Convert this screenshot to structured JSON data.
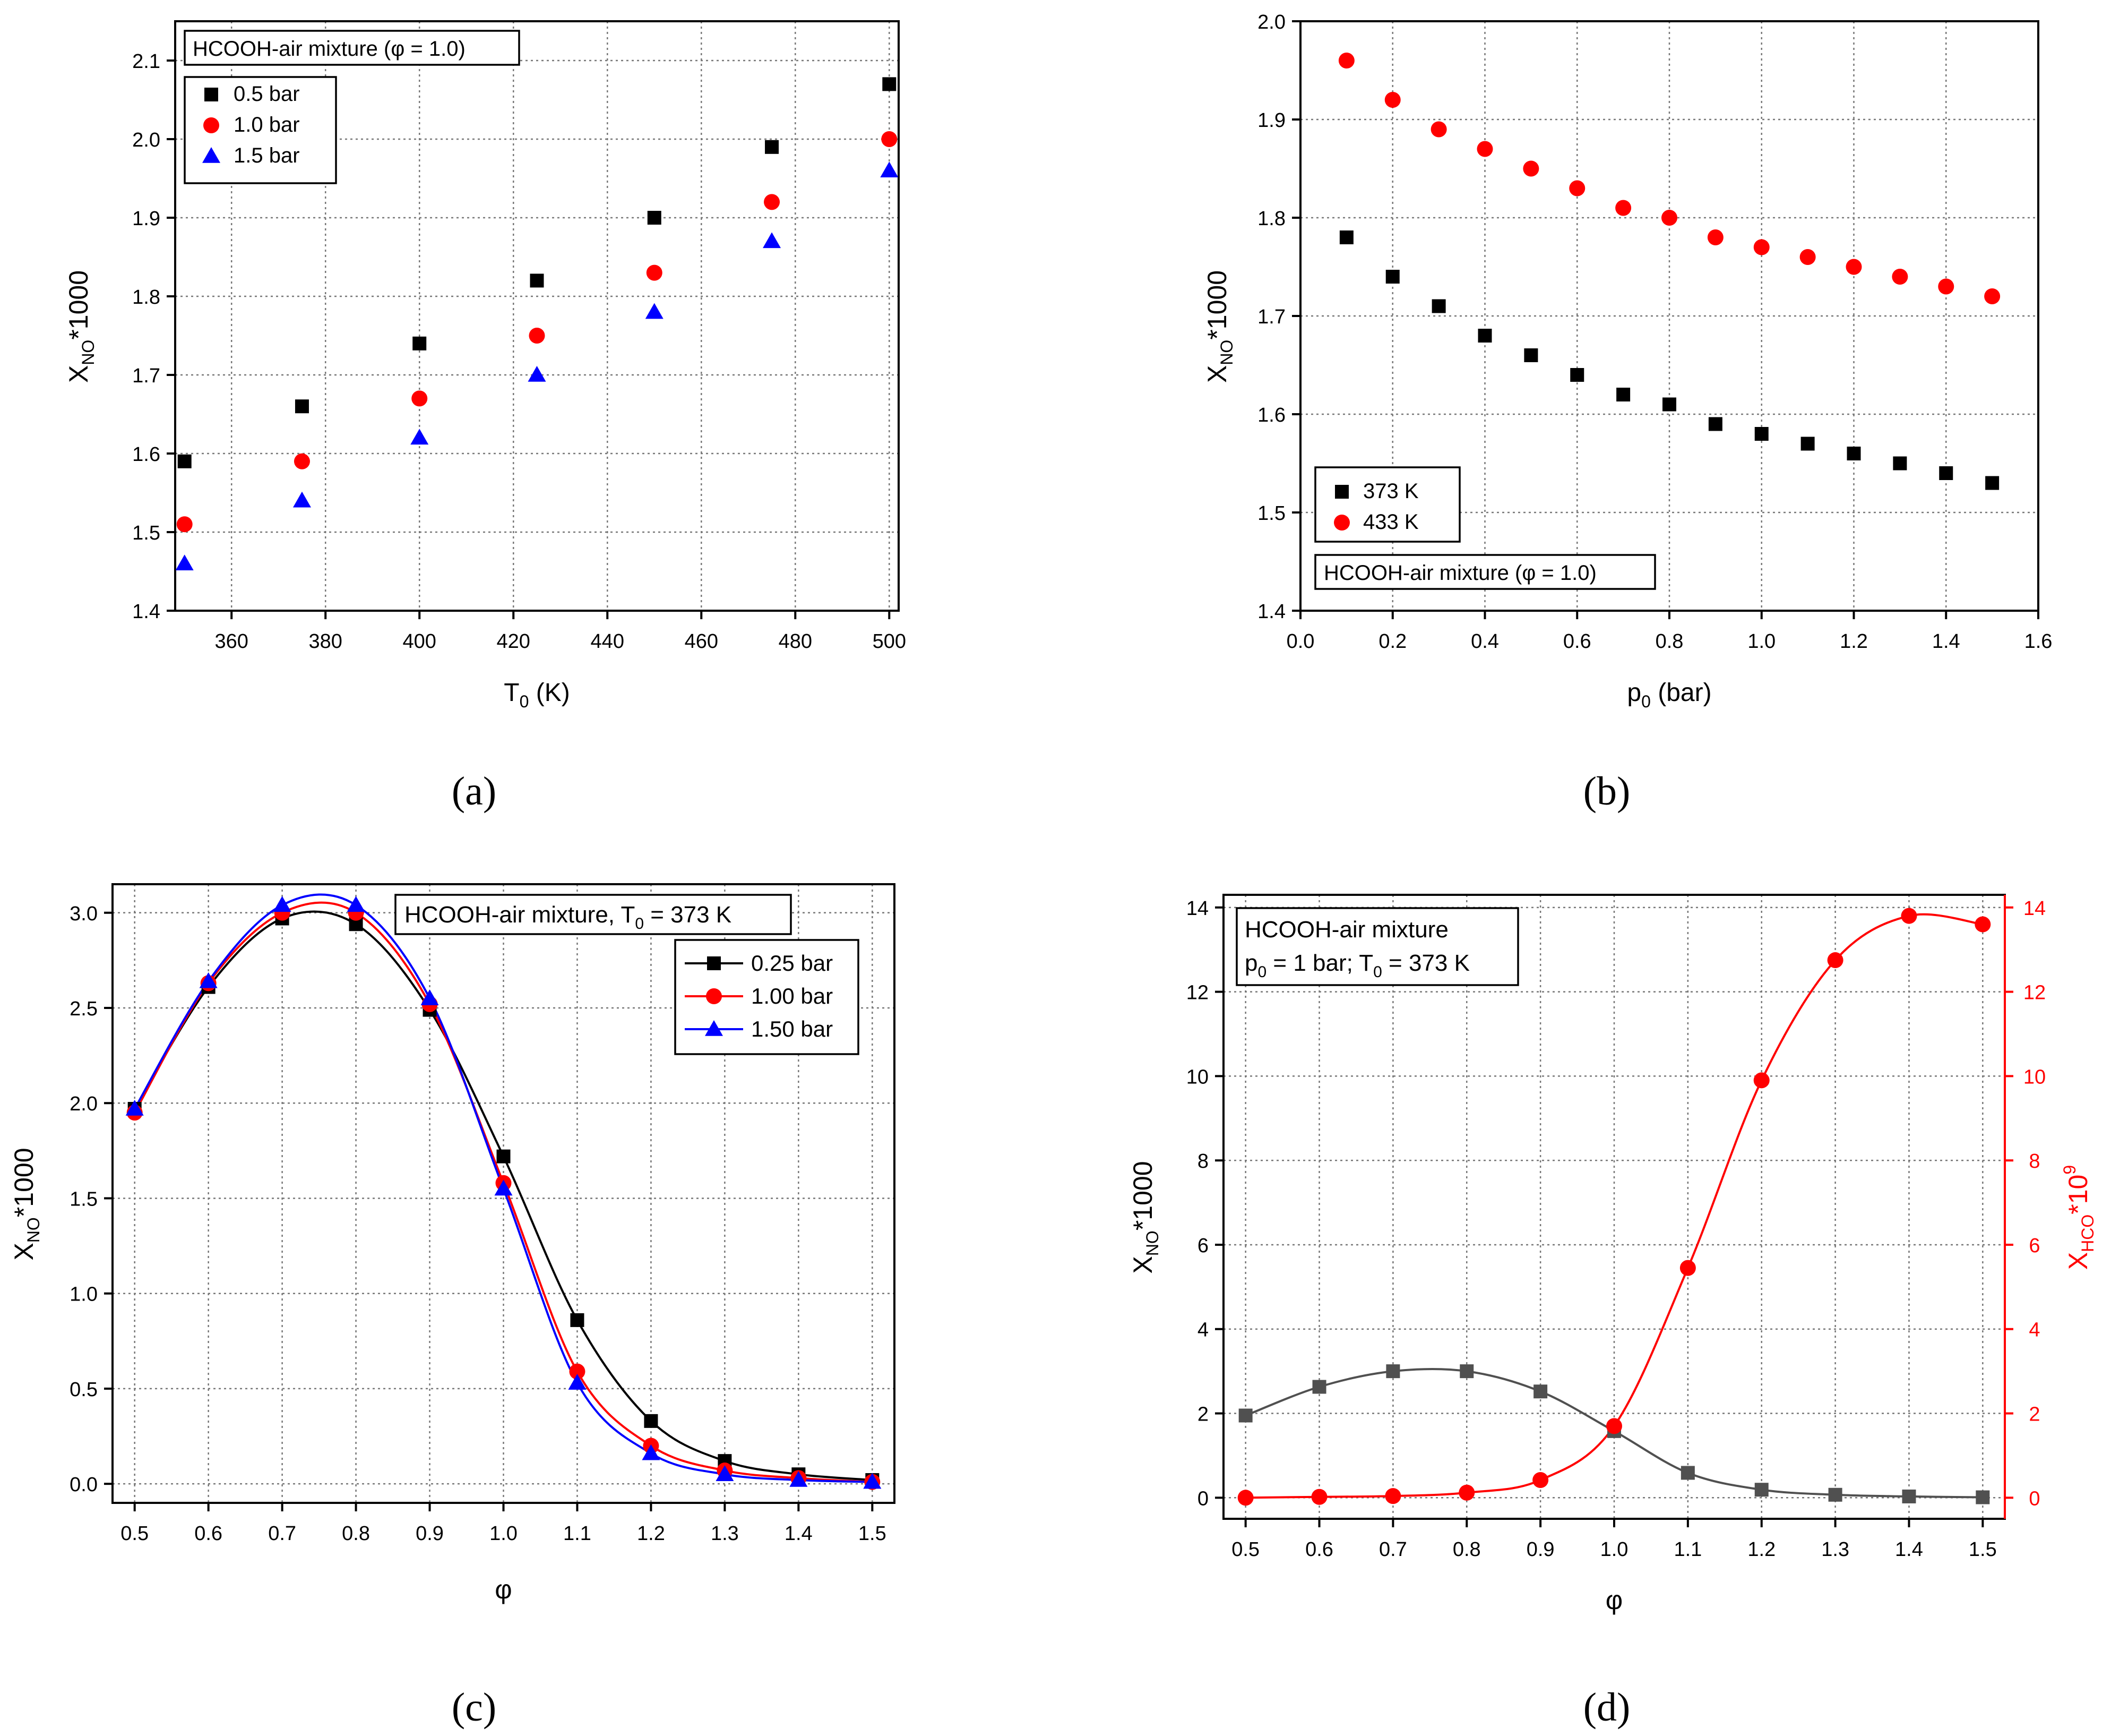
{
  "figure": {
    "panel_labels": [
      "(a)",
      "(b)",
      "(c)",
      "(d)"
    ]
  },
  "colors": {
    "black": "#000000",
    "red": "#ff0000",
    "blue": "#0000ff",
    "gray": "#505050",
    "grid": "#888888"
  },
  "chart_data": [
    {
      "id": "a",
      "type": "scatter",
      "annotation": "HCOOH-air mixture (φ = 1.0)",
      "xlabel_main": "T",
      "xlabel_sub": "0",
      "xlabel_tail": " (K)",
      "ylabel_main": "X",
      "ylabel_sub": "NO",
      "ylabel_tail": "*1000",
      "xlim": [
        348,
        502
      ],
      "ylim": [
        1.4,
        2.15
      ],
      "xticks": [
        360,
        380,
        400,
        420,
        440,
        460,
        480,
        500
      ],
      "yticks": [
        1.4,
        1.5,
        1.6,
        1.7,
        1.8,
        1.9,
        2.0,
        2.1
      ],
      "x": [
        350,
        375,
        400,
        425,
        450,
        475,
        500
      ],
      "series": [
        {
          "name": "0.5 bar",
          "marker": "square",
          "color": "#000000",
          "values": [
            1.59,
            1.66,
            1.74,
            1.82,
            1.9,
            1.99,
            2.07
          ]
        },
        {
          "name": "1.0 bar",
          "marker": "circle",
          "color": "#ff0000",
          "values": [
            1.51,
            1.59,
            1.67,
            1.75,
            1.83,
            1.92,
            2.0
          ]
        },
        {
          "name": "1.5 bar",
          "marker": "triangle",
          "color": "#0000ff",
          "values": [
            1.46,
            1.54,
            1.62,
            1.7,
            1.78,
            1.87,
            1.96
          ]
        }
      ]
    },
    {
      "id": "b",
      "type": "scatter",
      "annotation": "HCOOH-air mixture (φ = 1.0)",
      "xlabel_main": "p",
      "xlabel_sub": "0",
      "xlabel_tail": " (bar)",
      "ylabel_main": "X",
      "ylabel_sub": "NO",
      "ylabel_tail": "*1000",
      "xlim": [
        0.0,
        1.6
      ],
      "ylim": [
        1.4,
        2.0
      ],
      "xticks": [
        0.0,
        0.2,
        0.4,
        0.6,
        0.8,
        1.0,
        1.2,
        1.4,
        1.6
      ],
      "yticks": [
        1.4,
        1.5,
        1.6,
        1.7,
        1.8,
        1.9,
        2.0
      ],
      "x": [
        0.1,
        0.2,
        0.3,
        0.4,
        0.5,
        0.6,
        0.7,
        0.8,
        0.9,
        1.0,
        1.1,
        1.2,
        1.3,
        1.4,
        1.5
      ],
      "series": [
        {
          "name": "373 K",
          "marker": "square",
          "color": "#000000",
          "values": [
            1.78,
            1.74,
            1.71,
            1.68,
            1.66,
            1.64,
            1.62,
            1.61,
            1.59,
            1.58,
            1.57,
            1.56,
            1.55,
            1.54,
            1.53
          ]
        },
        {
          "name": "433 K",
          "marker": "circle",
          "color": "#ff0000",
          "values": [
            1.96,
            1.92,
            1.89,
            1.87,
            1.85,
            1.83,
            1.81,
            1.8,
            1.78,
            1.77,
            1.76,
            1.75,
            1.74,
            1.73,
            1.72
          ]
        }
      ]
    },
    {
      "id": "c",
      "type": "line",
      "annotation_main": "HCOOH-air mixture, T",
      "annotation_sub": "0",
      "annotation_tail": " = 373 K",
      "xlabel": "φ",
      "ylabel_main": "X",
      "ylabel_sub": "NO",
      "ylabel_tail": "*1000",
      "xlim": [
        0.47,
        1.53
      ],
      "ylim": [
        -0.1,
        3.15
      ],
      "xticks": [
        0.5,
        0.6,
        0.7,
        0.8,
        0.9,
        1.0,
        1.1,
        1.2,
        1.3,
        1.4,
        1.5
      ],
      "yticks": [
        0.0,
        0.5,
        1.0,
        1.5,
        2.0,
        2.5,
        3.0
      ],
      "x": [
        0.5,
        0.6,
        0.7,
        0.8,
        0.9,
        1.0,
        1.1,
        1.2,
        1.3,
        1.4,
        1.5
      ],
      "series": [
        {
          "name": "0.25 bar",
          "marker": "square",
          "color": "#000000",
          "values": [
            1.97,
            2.61,
            2.97,
            2.94,
            2.49,
            1.72,
            0.86,
            0.33,
            0.12,
            0.05,
            0.02
          ]
        },
        {
          "name": "1.00 bar",
          "marker": "circle",
          "color": "#ff0000",
          "values": [
            1.95,
            2.63,
            3.0,
            3.0,
            2.52,
            1.58,
            0.59,
            0.2,
            0.07,
            0.03,
            0.01
          ]
        },
        {
          "name": "1.50 bar",
          "marker": "triangle",
          "color": "#0000ff",
          "values": [
            1.97,
            2.64,
            3.04,
            3.04,
            2.55,
            1.55,
            0.53,
            0.16,
            0.05,
            0.02,
            0.01
          ]
        }
      ]
    },
    {
      "id": "d",
      "type": "line",
      "annotation_line1": "HCOOH-air mixture",
      "annotation_p": "p",
      "annotation_p_sub": "0",
      "annotation_mid": " = 1 bar; T",
      "annotation_t_sub": "0",
      "annotation_tail": " = 373 K",
      "xlabel": "φ",
      "ylabel_main": "X",
      "ylabel_sub": "NO",
      "ylabel_tail": "*1000",
      "y2label_main": "X",
      "y2label_sub": "HCO",
      "y2label_tail": "*10",
      "y2label_sup": "9",
      "xlim": [
        0.47,
        1.53
      ],
      "ylim": [
        -0.5,
        14.3
      ],
      "y2lim": [
        -0.5,
        14.3
      ],
      "xticks": [
        0.5,
        0.6,
        0.7,
        0.8,
        0.9,
        1.0,
        1.1,
        1.2,
        1.3,
        1.4,
        1.5
      ],
      "yticks": [
        0,
        2,
        4,
        6,
        8,
        10,
        12,
        14
      ],
      "y2ticks": [
        0,
        2,
        4,
        6,
        8,
        10,
        12,
        14
      ],
      "x": [
        0.5,
        0.6,
        0.7,
        0.8,
        0.9,
        1.0,
        1.1,
        1.2,
        1.3,
        1.4,
        1.5
      ],
      "series": [
        {
          "name": "X_NO*1000",
          "axis": "left",
          "marker": "square",
          "color": "#505050",
          "values": [
            1.95,
            2.63,
            3.0,
            3.0,
            2.52,
            1.58,
            0.59,
            0.19,
            0.07,
            0.03,
            0.01
          ]
        },
        {
          "name": "X_HCO*10^9",
          "axis": "right",
          "marker": "circle",
          "color": "#ff0000",
          "values": [
            0.0,
            0.02,
            0.04,
            0.12,
            0.42,
            1.7,
            5.45,
            9.9,
            12.75,
            13.8,
            13.6
          ]
        }
      ]
    }
  ]
}
